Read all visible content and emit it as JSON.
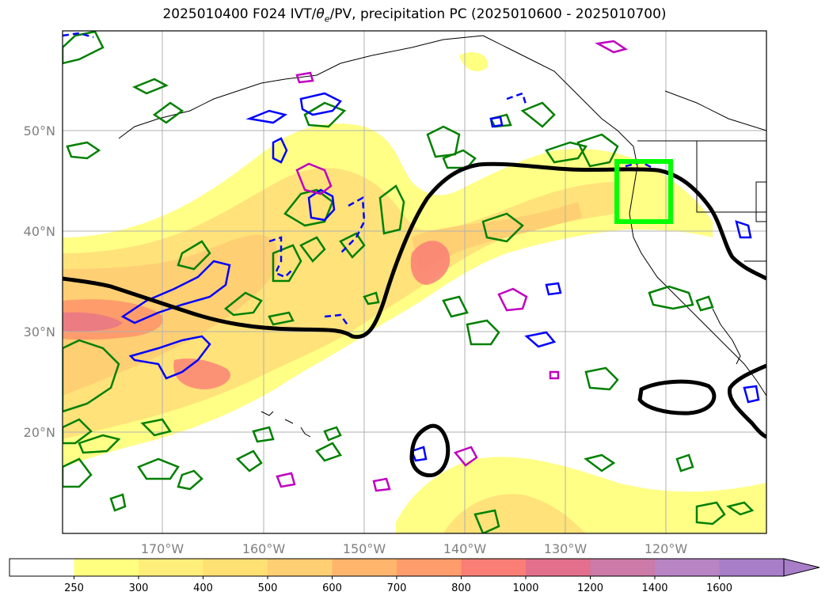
{
  "title": {
    "prefix": "2025010400 F024 IVT/",
    "theta": "θ",
    "theta_sub": "e",
    "suffix": "/PV, precipitation PC (2025010600 - 2025010700)"
  },
  "map": {
    "lat_labels": [
      "50°N",
      "40°N",
      "30°N",
      "20°N"
    ],
    "lon_labels": [
      "170°W",
      "160°W",
      "150°W",
      "140°W",
      "130°W",
      "120°W"
    ],
    "highlight_box_color": "#00ff00",
    "ivt_color_ramp": [
      "#ffff80",
      "#ffe27a",
      "#ffcf73",
      "#ffb56b",
      "#ff9c6b",
      "#fa7e75",
      "#e26f8c"
    ]
  },
  "colorbar": {
    "ticks": [
      "250",
      "300",
      "400",
      "500",
      "600",
      "700",
      "800",
      "1000",
      "1200",
      "1400",
      "1600"
    ],
    "colors": [
      "#ffffff",
      "#ffff80",
      "#ffef7a",
      "#ffe072",
      "#ffcf73",
      "#ffb56b",
      "#ff9c6b",
      "#fa7e75",
      "#e26f8c",
      "#cc7aa8",
      "#b884c4",
      "#a87ec9"
    ]
  }
}
